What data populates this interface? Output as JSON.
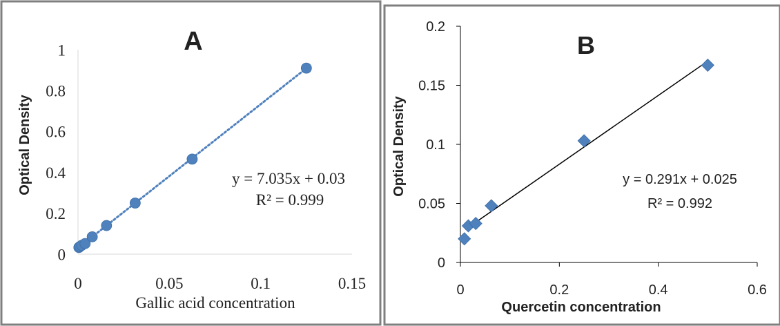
{
  "chart_data": [
    {
      "type": "scatter",
      "panel_label": "A",
      "title": "",
      "xlabel": "Gallic acid concentration",
      "ylabel": "Optical Density",
      "xlim": [
        0,
        0.15
      ],
      "ylim": [
        0,
        1
      ],
      "xticks": [
        0,
        0.05,
        0.1,
        0.15
      ],
      "yticks": [
        0,
        0.2,
        0.4,
        0.6,
        0.8,
        1
      ],
      "xtick_labels": [
        "0",
        "0.05",
        "0.1",
        "0.15"
      ],
      "ytick_labels": [
        "0",
        "0.2",
        "0.4",
        "0.6",
        "0.8",
        "1"
      ],
      "grid": false,
      "marker": "circle",
      "marker_color": "#4f81bd",
      "trendline": {
        "style": "dotted",
        "color": "#4f81bd",
        "slope": 7.035,
        "intercept": 0.03,
        "x_range": [
          0,
          0.125
        ]
      },
      "equation": "y = 7.035x + 0.03",
      "r_squared": "R² = 0.999",
      "points": [
        {
          "x": 0.0005,
          "y": 0.033
        },
        {
          "x": 0.001,
          "y": 0.037
        },
        {
          "x": 0.002,
          "y": 0.043
        },
        {
          "x": 0.0039,
          "y": 0.052
        },
        {
          "x": 0.0078,
          "y": 0.085
        },
        {
          "x": 0.0156,
          "y": 0.14
        },
        {
          "x": 0.0313,
          "y": 0.25
        },
        {
          "x": 0.0625,
          "y": 0.465
        },
        {
          "x": 0.125,
          "y": 0.91
        }
      ]
    },
    {
      "type": "scatter",
      "panel_label": "B",
      "title": "",
      "xlabel": "Quercetin concentration",
      "ylabel": "Optical Density",
      "xlim": [
        0,
        0.6
      ],
      "ylim": [
        0,
        0.2
      ],
      "xticks": [
        0,
        0.2,
        0.4,
        0.6
      ],
      "yticks": [
        0,
        0.05,
        0.1,
        0.15,
        0.2
      ],
      "xtick_labels": [
        "0",
        "0.2",
        "0.4",
        "0.6"
      ],
      "ytick_labels": [
        "0",
        "0.05",
        "0.1",
        "0.15",
        "0.2"
      ],
      "grid": false,
      "marker": "diamond",
      "marker_color": "#4f81bd",
      "trendline": {
        "style": "solid",
        "color": "#000000",
        "slope": 0.291,
        "intercept": 0.025,
        "x_range": [
          0.01,
          0.5
        ]
      },
      "equation": "y = 0.291x + 0.025",
      "r_squared": "R² = 0.992",
      "points": [
        {
          "x": 0.008,
          "y": 0.02
        },
        {
          "x": 0.016,
          "y": 0.031
        },
        {
          "x": 0.031,
          "y": 0.033
        },
        {
          "x": 0.0625,
          "y": 0.048
        },
        {
          "x": 0.25,
          "y": 0.103
        },
        {
          "x": 0.5,
          "y": 0.167
        }
      ]
    }
  ]
}
